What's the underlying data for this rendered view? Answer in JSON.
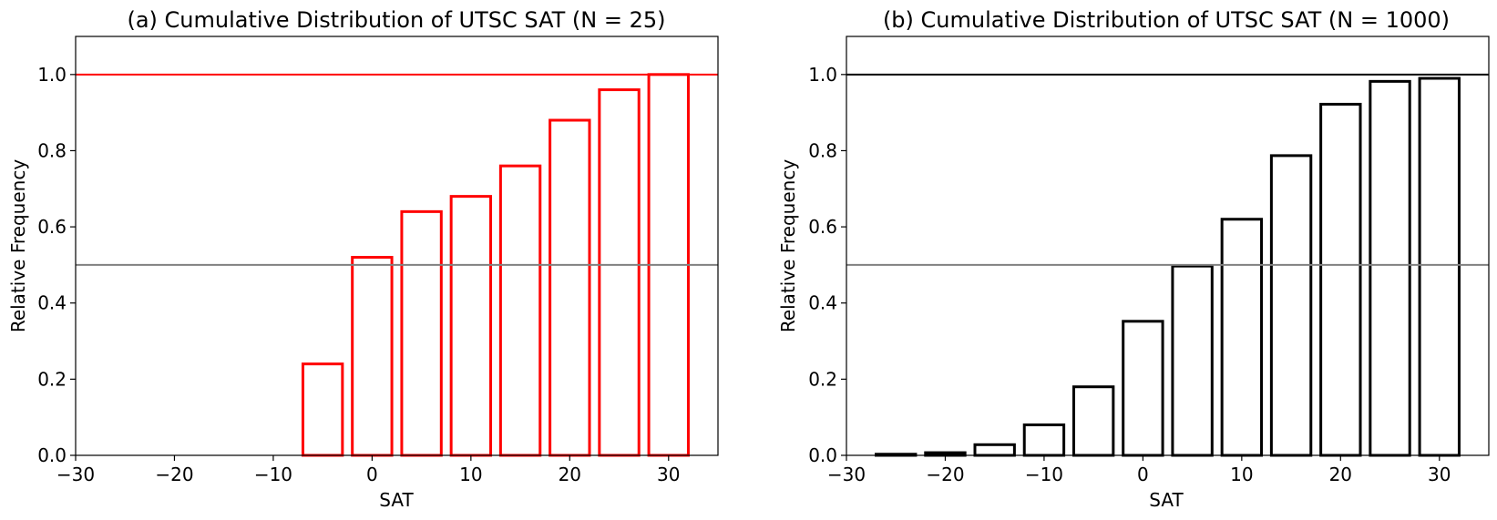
{
  "chart_data": [
    {
      "type": "bar",
      "title": "(a) Cumulative Distribution of UTSC SAT (N = 25)",
      "xlabel": "SAT",
      "ylabel": "Relative Frequency",
      "xlim": [
        -30,
        35
      ],
      "ylim": [
        0,
        1.1
      ],
      "xticks": [
        -30,
        -20,
        -10,
        0,
        10,
        20,
        30
      ],
      "xtick_labels": [
        "−30",
        "−20",
        "−10",
        "0",
        "10",
        "20",
        "30"
      ],
      "yticks": [
        0.0,
        0.2,
        0.4,
        0.6,
        0.8,
        1.0
      ],
      "ytick_labels": [
        "0.0",
        "0.2",
        "0.4",
        "0.6",
        "0.8",
        "1.0"
      ],
      "bar_width": 4,
      "x": [
        -25,
        -20,
        -15,
        -10,
        -5,
        0,
        5,
        10,
        15,
        20,
        25,
        30
      ],
      "values": [
        0,
        0,
        0,
        0,
        0.24,
        0.52,
        0.64,
        0.68,
        0.76,
        0.88,
        0.96,
        1.0
      ],
      "bar_color": "#ff0000",
      "hlines": [
        {
          "y": 1.0,
          "color": "#ff0000"
        },
        {
          "y": 0.5,
          "color": "#808080"
        }
      ],
      "grid": false
    },
    {
      "type": "bar",
      "title": "(b) Cumulative Distribution of UTSC SAT (N = 1000)",
      "xlabel": "SAT",
      "ylabel": "Relative Frequency",
      "xlim": [
        -30,
        35
      ],
      "ylim": [
        0,
        1.1
      ],
      "xticks": [
        -30,
        -20,
        -10,
        0,
        10,
        20,
        30
      ],
      "xtick_labels": [
        "−30",
        "−20",
        "−10",
        "0",
        "10",
        "20",
        "30"
      ],
      "yticks": [
        0.0,
        0.2,
        0.4,
        0.6,
        0.8,
        1.0
      ],
      "ytick_labels": [
        "0.0",
        "0.2",
        "0.4",
        "0.6",
        "0.8",
        "1.0"
      ],
      "bar_width": 4,
      "x": [
        -25,
        -20,
        -15,
        -10,
        -5,
        0,
        5,
        10,
        15,
        20,
        25,
        30
      ],
      "values": [
        0.003,
        0.007,
        0.028,
        0.08,
        0.18,
        0.352,
        0.497,
        0.62,
        0.787,
        0.922,
        0.982,
        0.99
      ],
      "bar_color": "#000000",
      "hlines": [
        {
          "y": 1.0,
          "color": "#000000"
        },
        {
          "y": 0.5,
          "color": "#808080"
        }
      ],
      "grid": false
    }
  ]
}
